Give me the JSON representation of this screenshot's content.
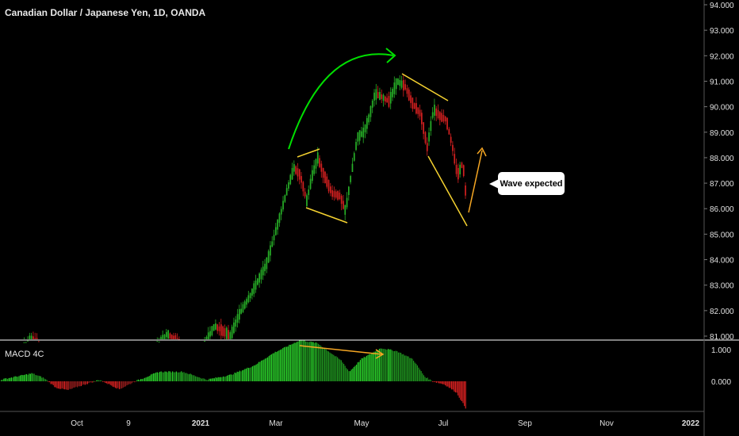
{
  "chart_data": {
    "type": "candlestick",
    "title": "Canadian Dollar / Japanese Yen, 1D, OANDA",
    "price_axis": {
      "ticks": [
        "94.000",
        "93.000",
        "92.000",
        "91.000",
        "90.000",
        "89.000",
        "88.000",
        "87.000",
        "86.000",
        "85.000",
        "84.000",
        "83.000",
        "82.000",
        "81.000"
      ],
      "range": [
        80.9,
        94.1
      ]
    },
    "macd_axis": {
      "label": "MACD 4C",
      "ticks": [
        "1.000",
        "0.000"
      ],
      "range": [
        -1.0,
        1.42
      ]
    },
    "time_axis": {
      "ticks": [
        "Oct",
        "9",
        "2021",
        "Mar",
        "May",
        "Jul",
        "Sep",
        "Nov",
        "2022"
      ]
    },
    "annotation": "Wave expected",
    "colors": {
      "up": "#27b027",
      "down": "#d42020",
      "arrow_green": "#00e000",
      "line_yellow": "#f5d230",
      "arrow_orange": "#f5a623",
      "divider": "#ffffff"
    },
    "price_path": [
      [
        0,
        80.2
      ],
      [
        20,
        80.3
      ],
      [
        40,
        80.9
      ],
      [
        55,
        80.4
      ],
      [
        70,
        79.6
      ],
      [
        95,
        79.4
      ],
      [
        130,
        79.8
      ],
      [
        160,
        80.5
      ],
      [
        185,
        80.1
      ],
      [
        210,
        81.1
      ],
      [
        225,
        80.7
      ],
      [
        240,
        80.2
      ],
      [
        255,
        80.6
      ],
      [
        270,
        81.4
      ],
      [
        290,
        81.0
      ],
      [
        300,
        81.8
      ],
      [
        315,
        82.6
      ],
      [
        325,
        83.2
      ],
      [
        335,
        83.8
      ],
      [
        345,
        84.9
      ],
      [
        355,
        86.0
      ],
      [
        362,
        86.8
      ],
      [
        370,
        87.6
      ],
      [
        378,
        87.3
      ],
      [
        386,
        86.3
      ],
      [
        393,
        87.3
      ],
      [
        400,
        88.0
      ],
      [
        408,
        87.3
      ],
      [
        418,
        86.6
      ],
      [
        428,
        86.5
      ],
      [
        435,
        85.9
      ],
      [
        442,
        87.3
      ],
      [
        450,
        88.8
      ],
      [
        458,
        89.0
      ],
      [
        465,
        89.6
      ],
      [
        472,
        90.5
      ],
      [
        480,
        90.4
      ],
      [
        490,
        90.2
      ],
      [
        500,
        91.0
      ],
      [
        510,
        90.8
      ],
      [
        520,
        90.1
      ],
      [
        530,
        89.7
      ],
      [
        538,
        88.4
      ],
      [
        546,
        89.9
      ],
      [
        555,
        89.6
      ],
      [
        562,
        89.5
      ],
      [
        570,
        88.4
      ],
      [
        576,
        87.3
      ],
      [
        583,
        87.8
      ],
      [
        588,
        86.1
      ]
    ],
    "macd_path": [
      [
        0,
        0.05
      ],
      [
        40,
        0.25
      ],
      [
        55,
        0.1
      ],
      [
        70,
        -0.2
      ],
      [
        85,
        -0.28
      ],
      [
        100,
        -0.15
      ],
      [
        125,
        0.05
      ],
      [
        150,
        -0.25
      ],
      [
        170,
        0.0
      ],
      [
        200,
        0.3
      ],
      [
        230,
        0.3
      ],
      [
        260,
        0.05
      ],
      [
        290,
        0.2
      ],
      [
        320,
        0.5
      ],
      [
        345,
        0.9
      ],
      [
        378,
        1.3
      ],
      [
        400,
        1.2
      ],
      [
        430,
        0.65
      ],
      [
        440,
        0.3
      ],
      [
        455,
        0.7
      ],
      [
        480,
        1.05
      ],
      [
        500,
        0.95
      ],
      [
        520,
        0.7
      ],
      [
        535,
        0.15
      ],
      [
        545,
        0.0
      ],
      [
        560,
        -0.1
      ],
      [
        575,
        -0.35
      ],
      [
        588,
        -0.9
      ]
    ]
  }
}
